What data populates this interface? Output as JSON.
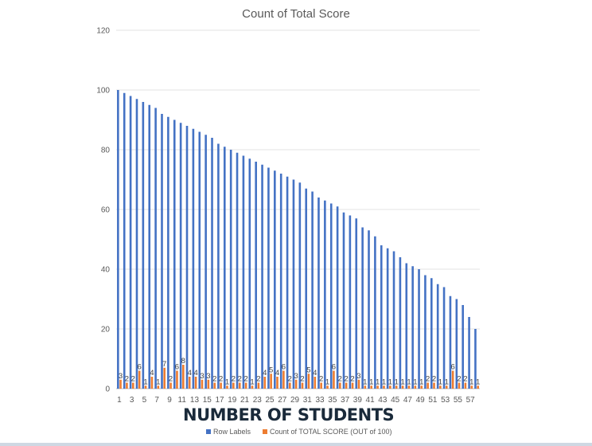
{
  "overlay": {
    "title": "NUMBER OF STUDENTS"
  },
  "chart_data": {
    "type": "bar",
    "title": "Count of Total Score",
    "xlabel": "",
    "ylabel": "",
    "ylim": [
      0,
      120
    ],
    "yticks": [
      0,
      20,
      40,
      60,
      80,
      100,
      120
    ],
    "grid": true,
    "legend_position": "bottom",
    "categories": [
      1,
      2,
      3,
      4,
      5,
      6,
      7,
      8,
      9,
      10,
      11,
      12,
      13,
      14,
      15,
      16,
      17,
      18,
      19,
      20,
      21,
      22,
      23,
      24,
      25,
      26,
      27,
      28,
      29,
      30,
      31,
      32,
      33,
      34,
      35,
      36,
      37,
      38,
      39,
      40,
      41,
      42,
      43,
      44,
      45,
      46,
      47,
      48,
      49,
      50,
      51,
      52,
      53,
      54,
      55,
      56,
      57,
      58
    ],
    "xtick_labels": [
      "1",
      "3",
      "5",
      "7",
      "9",
      "11",
      "13",
      "15",
      "17",
      "19",
      "21",
      "23",
      "25",
      "27",
      "29",
      "31",
      "33",
      "35",
      "37",
      "39",
      "41",
      "43",
      "45",
      "47",
      "49",
      "51",
      "53",
      "55",
      "57"
    ],
    "series": [
      {
        "name": "Row Labels",
        "color": "#4472C4",
        "values": [
          100,
          99,
          98,
          97,
          96,
          95,
          94,
          92,
          91,
          90,
          89,
          88,
          87,
          86,
          85,
          84,
          82,
          81,
          80,
          79,
          78,
          77,
          76,
          75,
          74,
          73,
          72,
          71,
          70,
          69,
          67,
          66,
          64,
          63,
          62,
          61,
          59,
          58,
          57,
          54,
          53,
          51,
          48,
          47,
          46,
          44,
          42,
          41,
          40,
          38,
          37,
          35,
          34,
          31,
          30,
          28,
          24,
          20
        ]
      },
      {
        "name": "Count of TOTAL SCORE (OUT of 100)",
        "color": "#ED7D31",
        "values": [
          3,
          2,
          2,
          6,
          1,
          4,
          1,
          7,
          2,
          6,
          8,
          4,
          4,
          3,
          3,
          2,
          2,
          1,
          2,
          2,
          2,
          1,
          2,
          4,
          5,
          4,
          6,
          2,
          3,
          2,
          5,
          4,
          2,
          1,
          6,
          2,
          2,
          2,
          3,
          1,
          1,
          1,
          1,
          1,
          1,
          1,
          1,
          1,
          1,
          2,
          2,
          1,
          1,
          6,
          2,
          2,
          1,
          1
        ]
      }
    ]
  }
}
